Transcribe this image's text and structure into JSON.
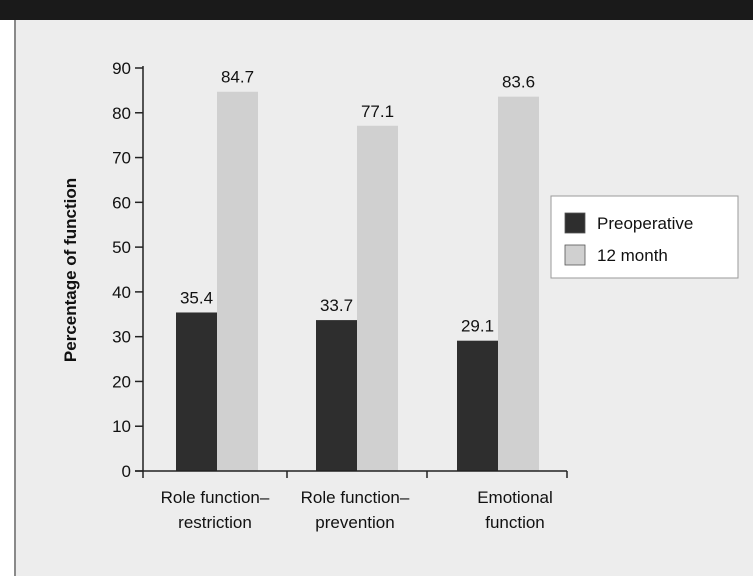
{
  "chart_data": {
    "type": "bar",
    "title": "",
    "xlabel": "",
    "ylabel": "Percentage of function",
    "ylim": [
      0,
      90
    ],
    "yticks": [
      0,
      10,
      20,
      30,
      40,
      50,
      60,
      70,
      80,
      90
    ],
    "categories": [
      [
        "Role function–",
        "restriction"
      ],
      [
        "Role function–",
        "prevention"
      ],
      [
        "Emotional",
        "function"
      ]
    ],
    "series": [
      {
        "name": "Preoperative",
        "values": [
          35.4,
          33.7,
          29.1
        ],
        "color": "#2e2e2e"
      },
      {
        "name": "12 month",
        "values": [
          84.7,
          77.1,
          83.6
        ],
        "color": "#d0d0d0"
      }
    ],
    "data_labels": [
      [
        "35.4",
        "33.7",
        "29.1"
      ],
      [
        "84.7",
        "77.1",
        "83.6"
      ]
    ],
    "legend_position": "right",
    "grid": false
  },
  "colors": {
    "background": "#ededed",
    "axis": "#222222",
    "dark_band": "#1a1a1a"
  }
}
